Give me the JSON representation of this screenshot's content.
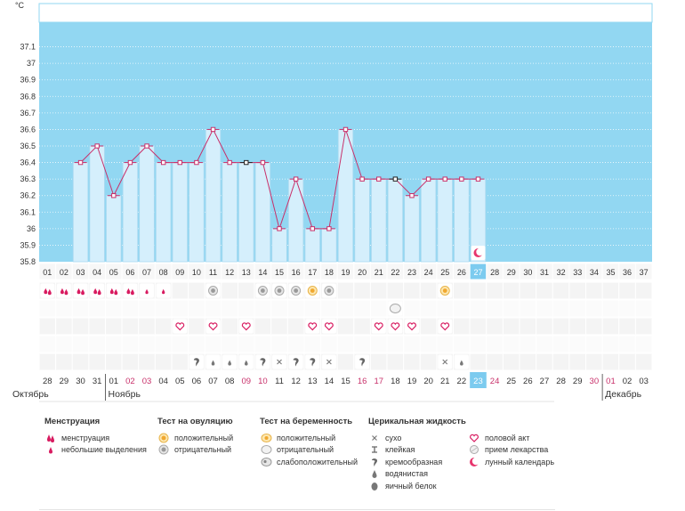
{
  "unit_label": "°C",
  "chart_data": {
    "type": "line",
    "title": "",
    "ylabel": "°C",
    "ylim": [
      35.8,
      37.2
    ],
    "y_ticks": [
      "37.1",
      "37",
      "36.9",
      "36.8",
      "36.7",
      "36.6",
      "36.5",
      "36.4",
      "36.3",
      "36.2",
      "36.1",
      "36",
      "35.9",
      "35.8"
    ],
    "cycle_days": [
      "01",
      "02",
      "03",
      "04",
      "05",
      "06",
      "07",
      "08",
      "09",
      "10",
      "11",
      "12",
      "13",
      "14",
      "15",
      "16",
      "17",
      "18",
      "19",
      "20",
      "21",
      "22",
      "23",
      "24",
      "25",
      "26",
      "27",
      "28",
      "29",
      "30",
      "31",
      "32",
      "33",
      "34",
      "35",
      "36",
      "37"
    ],
    "temperatures": [
      null,
      null,
      36.4,
      36.5,
      36.2,
      36.4,
      36.5,
      36.4,
      36.4,
      36.4,
      36.6,
      36.4,
      36.4,
      36.4,
      36.0,
      36.3,
      36.0,
      36.0,
      36.6,
      36.3,
      36.3,
      36.3,
      36.2,
      36.3,
      36.3,
      36.3,
      36.3
    ],
    "current_day": "27"
  },
  "calendar": {
    "dates": [
      "28",
      "29",
      "30",
      "31",
      "01",
      "02",
      "03",
      "04",
      "05",
      "06",
      "07",
      "08",
      "09",
      "10",
      "11",
      "12",
      "13",
      "14",
      "15",
      "16",
      "17",
      "18",
      "19",
      "20",
      "21",
      "22",
      "23",
      "24",
      "25",
      "26",
      "27",
      "28",
      "29",
      "30",
      "01",
      "02",
      "03"
    ],
    "weekend_indices": [
      5,
      6,
      12,
      13,
      19,
      20,
      26,
      27,
      33,
      34
    ],
    "today_index": 26,
    "months": [
      {
        "name": "Октябрь",
        "start_index": 0
      },
      {
        "name": "Ноябрь",
        "start_index": 4
      },
      {
        "name": "Декабрь",
        "start_index": 34
      }
    ]
  },
  "markers": {
    "menstruation": [
      0,
      1,
      2,
      3,
      4,
      5
    ],
    "light_discharge": [
      6,
      7
    ],
    "ovulation_positive": [
      16,
      24
    ],
    "ovulation_negative": [
      10,
      13,
      14,
      15,
      17
    ],
    "pregnancy_negative": [
      21
    ],
    "intercourse": [
      8,
      10,
      12,
      16,
      17,
      20,
      21,
      22,
      24
    ],
    "fluid_creamy": [
      9,
      13,
      15,
      16,
      19
    ],
    "fluid_watery": [
      10,
      11,
      12
    ],
    "fluid_dry": [
      14,
      17,
      24
    ],
    "fluid_watery_late": [
      25
    ],
    "moon_day": 26
  },
  "legend": {
    "menstruation": {
      "title": "Менструация",
      "items": [
        "менструация",
        "небольшие выделения"
      ]
    },
    "ovulation": {
      "title": "Тест на овуляцию",
      "items": [
        "положительный",
        "отрицательный"
      ]
    },
    "pregnancy": {
      "title": "Тест на беременность",
      "items": [
        "положительный",
        "отрицательный",
        "слабоположительный"
      ]
    },
    "cervical": {
      "title": "Церикальная жидкость",
      "items": [
        "сухо",
        "клейкая",
        "кремообразная",
        "водянистая",
        "яичный белок"
      ]
    },
    "other": {
      "items": [
        "половой акт",
        "прием лекарства",
        "лунный календарь"
      ]
    }
  },
  "colors": {
    "plot_bg": "#92d7f2",
    "bar_fill": "#d5effc",
    "bar_border": "#a9d9f0",
    "line": "#c8306a",
    "weekend": "#c8306a",
    "today_bg": "#7ccbef",
    "grid_row_a": "#f4f4f4",
    "grid_row_b": "#fbfbfb"
  }
}
